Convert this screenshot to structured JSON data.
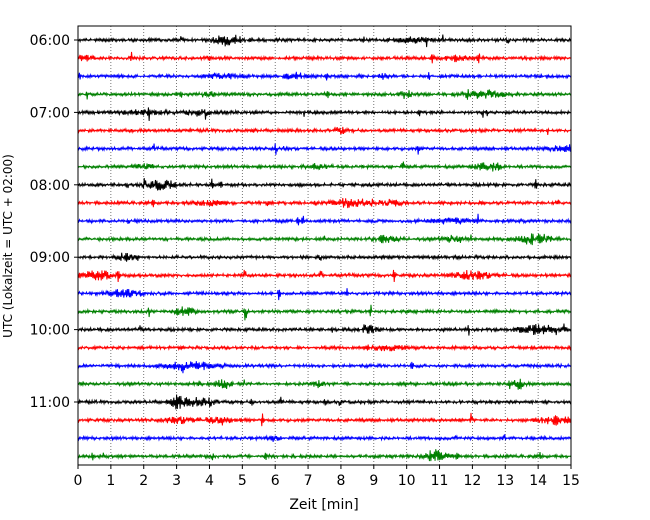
{
  "chart_data": {
    "type": "line",
    "title": "",
    "xlabel": "Zeit  [min]",
    "ylabel": "UTC (Lokalzeit = UTC + 02:00)",
    "xlim": [
      0,
      15
    ],
    "x_ticks": [
      0,
      1,
      2,
      3,
      4,
      5,
      6,
      7,
      8,
      9,
      10,
      11,
      12,
      13,
      14,
      15
    ],
    "x_tick_labels": [
      "0",
      "1",
      "2",
      "3",
      "4",
      "5",
      "6",
      "7",
      "8",
      "9",
      "10",
      "11",
      "12",
      "13",
      "14",
      "15"
    ],
    "y_tick_labels": [
      "06:00",
      "07:00",
      "08:00",
      "09:00",
      "10:00",
      "11:00"
    ],
    "grid": {
      "x": true,
      "y": false,
      "style": "dotted"
    },
    "traces_per_hour": 4,
    "trace_interval_min": 15,
    "trace_colors": [
      "#000000",
      "#ff0000",
      "#0000ff",
      "#008000"
    ],
    "rows": [
      {
        "start": "06:00",
        "color": "#000000"
      },
      {
        "start": "06:15",
        "color": "#ff0000"
      },
      {
        "start": "06:30",
        "color": "#0000ff"
      },
      {
        "start": "06:45",
        "color": "#008000"
      },
      {
        "start": "07:00",
        "color": "#000000"
      },
      {
        "start": "07:15",
        "color": "#ff0000"
      },
      {
        "start": "07:30",
        "color": "#0000ff"
      },
      {
        "start": "07:45",
        "color": "#008000"
      },
      {
        "start": "08:00",
        "color": "#000000"
      },
      {
        "start": "08:15",
        "color": "#ff0000"
      },
      {
        "start": "08:30",
        "color": "#0000ff"
      },
      {
        "start": "08:45",
        "color": "#008000"
      },
      {
        "start": "09:00",
        "color": "#000000"
      },
      {
        "start": "09:15",
        "color": "#ff0000"
      },
      {
        "start": "09:30",
        "color": "#0000ff"
      },
      {
        "start": "09:45",
        "color": "#008000"
      },
      {
        "start": "10:00",
        "color": "#000000"
      },
      {
        "start": "10:15",
        "color": "#ff0000"
      },
      {
        "start": "10:30",
        "color": "#0000ff"
      },
      {
        "start": "10:45",
        "color": "#008000"
      },
      {
        "start": "11:00",
        "color": "#000000"
      },
      {
        "start": "11:15",
        "color": "#ff0000"
      },
      {
        "start": "11:30",
        "color": "#0000ff"
      },
      {
        "start": "11:45",
        "color": "#008000"
      }
    ]
  }
}
